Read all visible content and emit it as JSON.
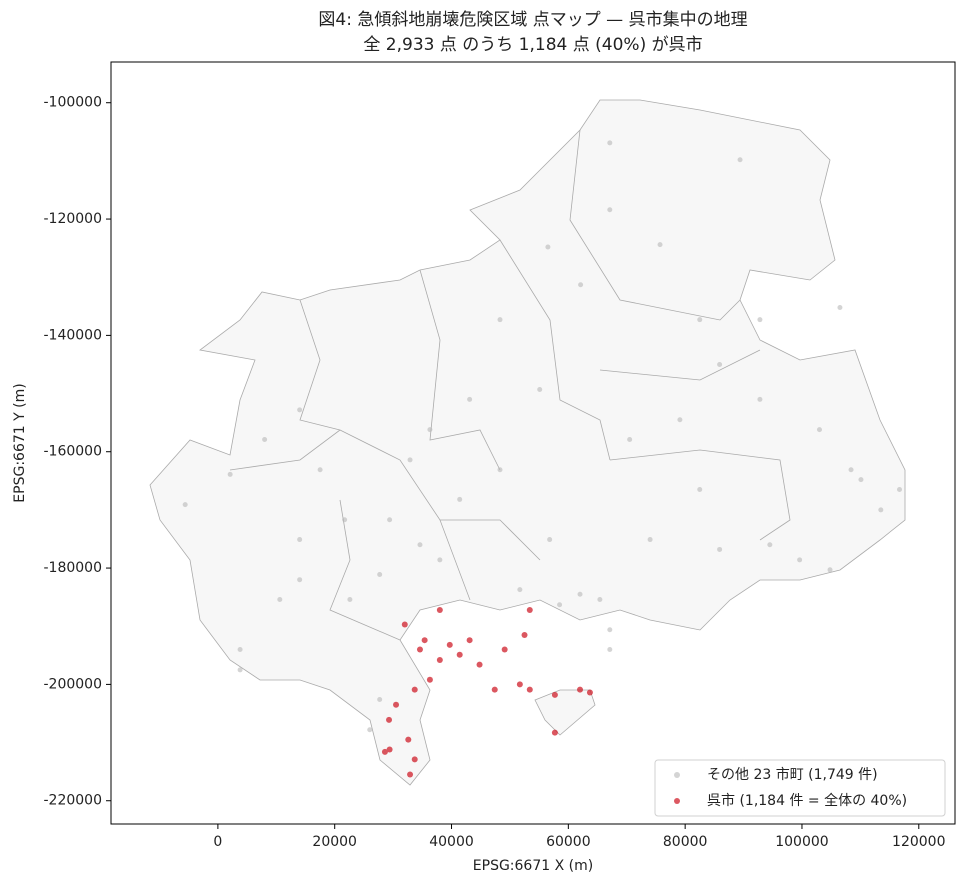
{
  "chart_data": {
    "type": "scatter",
    "title": "図4: 急傾斜地崩壊危険区域 点マップ — 呉市集中の地理",
    "subtitle": "全 2,933 点 のうち 1,184 点 (40%) が呉市",
    "x_label": "EPSG:6671 X (m)",
    "y_label": "EPSG:6671 Y (m)",
    "xlim": [
      -18300,
      126200
    ],
    "ylim": [
      -224000,
      -93000
    ],
    "xticks": [
      0,
      20000,
      40000,
      60000,
      80000,
      100000,
      120000
    ],
    "yticks": [
      -220000,
      -200000,
      -180000,
      -160000,
      -140000,
      -120000,
      -100000
    ],
    "legend_position": "lower right",
    "series": [
      {
        "name": "その他 23 市町 (1,749 件)",
        "color": "#b8b8b8",
        "x": [
          67100,
          89400,
          67100,
          75700,
          56500,
          62100,
          106500,
          85900,
          14000,
          8000,
          -5600,
          2100,
          17500,
          29400,
          32900,
          34600,
          27700,
          14000,
          10600,
          3800,
          3800,
          38000,
          41400,
          48300,
          56800,
          65400,
          67100,
          74000,
          85900,
          94500,
          99600,
          104800,
          110100,
          113500,
          103000,
          108400,
          62000,
          22600,
          27700,
          26000,
          51700,
          70500,
          82500,
          48300,
          43100,
          55100,
          82500,
          92800,
          79100,
          92800,
          14000,
          21700,
          36300,
          116700,
          67100,
          58500
        ],
        "values": [
          -106900,
          -109800,
          -118400,
          -124400,
          -124800,
          -131300,
          -135200,
          -145000,
          -152800,
          -157900,
          -169100,
          -163900,
          -163100,
          -171700,
          -161400,
          -176000,
          -181100,
          -182000,
          -185400,
          -194000,
          -197500,
          -178600,
          -168200,
          -163100,
          -175100,
          -185400,
          -194000,
          -175100,
          -176800,
          -176000,
          -178600,
          -180300,
          -164800,
          -170000,
          -156200,
          -163100,
          -184500,
          -185400,
          -202600,
          -207800,
          -183700,
          -157900,
          -166500,
          -137300,
          -151000,
          -149300,
          -137300,
          -137300,
          -154500,
          -151000,
          -175100,
          -171700,
          -156200,
          -166500,
          -190600,
          -186300
        ]
      },
      {
        "name": "呉市 (1,184 件 = 全体の 40%)",
        "color": "#d0202c",
        "x": [
          32000,
          34600,
          38000,
          36300,
          41400,
          44800,
          39700,
          33700,
          30500,
          29300,
          32600,
          33700,
          32900,
          29400,
          28600,
          49100,
          52500,
          53400,
          47400,
          51700,
          57700,
          62000,
          63700,
          57700,
          38000,
          53400,
          43100,
          35400
        ],
        "values": [
          -189700,
          -194000,
          -195800,
          -199200,
          -194900,
          -196600,
          -193200,
          -200900,
          -203500,
          -206100,
          -209500,
          -212900,
          -215500,
          -211200,
          -211600,
          -194000,
          -191500,
          -187200,
          -200900,
          -200000,
          -201800,
          -200900,
          -201400,
          -208300,
          -187200,
          -200900,
          -192400,
          -192400
        ]
      }
    ]
  }
}
